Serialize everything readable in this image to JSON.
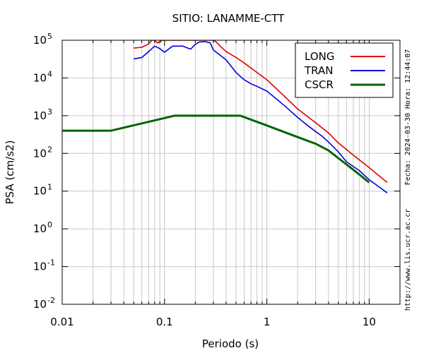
{
  "chart_data": {
    "type": "line",
    "title": "SITIO: LANAMME-CTT",
    "xlabel": "Periodo (s)",
    "ylabel": "PSA (cm/s2)",
    "xscale": "log",
    "yscale": "log",
    "xlim": [
      0.01,
      20
    ],
    "ylim": [
      0.01,
      100000
    ],
    "x_ticks": [
      {
        "value": 0.01,
        "label": "0.01"
      },
      {
        "value": 0.1,
        "label": "0.1"
      },
      {
        "value": 1,
        "label": "1"
      },
      {
        "value": 10,
        "label": "10"
      }
    ],
    "y_ticks": [
      {
        "value": 0.01,
        "base": "10",
        "exp": "-2"
      },
      {
        "value": 0.1,
        "base": "10",
        "exp": "-1"
      },
      {
        "value": 1,
        "base": "10",
        "exp": "0"
      },
      {
        "value": 10,
        "base": "10",
        "exp": "1"
      },
      {
        "value": 100,
        "base": "10",
        "exp": "2"
      },
      {
        "value": 1000,
        "base": "10",
        "exp": "3"
      },
      {
        "value": 10000,
        "base": "10",
        "exp": "4"
      },
      {
        "value": 100000,
        "base": "10",
        "exp": "5"
      }
    ],
    "grid": true,
    "legend_position": "top-right",
    "series": [
      {
        "name": "LONG",
        "color": "#e00000",
        "x": [
          0.05,
          0.06,
          0.07,
          0.075,
          0.08,
          0.085,
          0.09,
          0.095,
          0.3,
          0.32,
          0.35,
          0.4,
          0.5,
          0.6,
          0.8,
          1.0,
          1.5,
          2.0,
          3.0,
          4.0,
          5.0,
          7.0,
          10.0,
          15.0
        ],
        "y": [
          62000,
          65000,
          80000,
          100000,
          100000,
          85000,
          90000,
          100000,
          100000,
          90000,
          70000,
          50000,
          35000,
          25000,
          14000,
          9000,
          3200,
          1500,
          650,
          350,
          190,
          90,
          42,
          17
        ]
      },
      {
        "name": "TRAN",
        "color": "#0000dd",
        "x": [
          0.05,
          0.06,
          0.07,
          0.08,
          0.09,
          0.1,
          0.12,
          0.15,
          0.18,
          0.2,
          0.22,
          0.25,
          0.28,
          0.3,
          0.35,
          0.4,
          0.45,
          0.5,
          0.55,
          0.6,
          0.7,
          0.8,
          1.0,
          1.2,
          1.5,
          2.0,
          2.5,
          3.0,
          3.5,
          4.0,
          5.0,
          6.0,
          8.0,
          10.0,
          12.0,
          15.0
        ],
        "y": [
          32000,
          35000,
          50000,
          70000,
          60000,
          48000,
          70000,
          70000,
          58000,
          78000,
          90000,
          92000,
          85000,
          55000,
          40000,
          30000,
          20000,
          14000,
          11000,
          9000,
          7000,
          6000,
          4500,
          3000,
          1800,
          900,
          550,
          380,
          280,
          200,
          110,
          60,
          35,
          20,
          14,
          9
        ]
      },
      {
        "name": "CSCR",
        "color": "#006400",
        "x": [
          0.01,
          0.03,
          0.125,
          0.55,
          1.0,
          2.0,
          3.0,
          4.0,
          5.0,
          7.0,
          10.0
        ],
        "y": [
          400,
          400,
          1000,
          1000,
          550,
          270,
          180,
          120,
          75,
          37,
          17
        ]
      }
    ],
    "side_texts": [
      "Fecha: 2024-03-30  Hora: 12:44:07",
      "http://www.lis.ucr.ac.cr"
    ]
  }
}
